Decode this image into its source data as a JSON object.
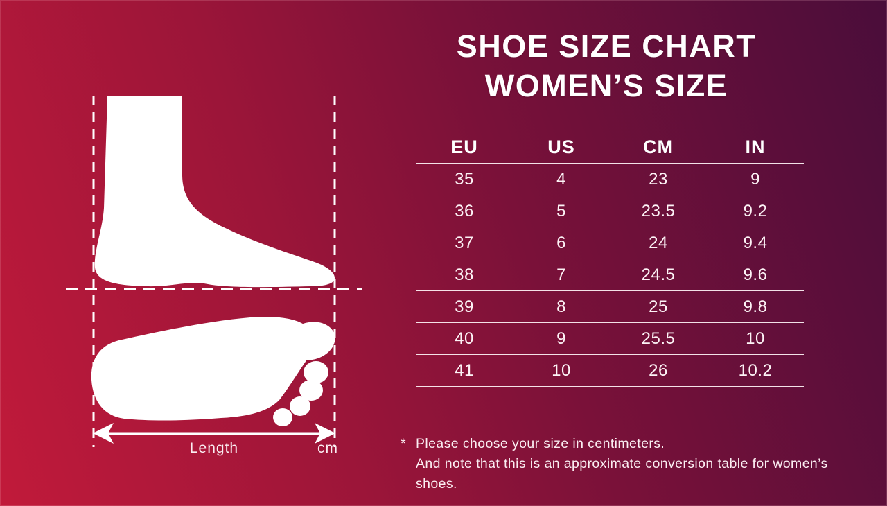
{
  "title": {
    "line1": "SHOE SIZE CHART",
    "line2": "WOMEN’S SIZE"
  },
  "table": {
    "headers": [
      "EU",
      "US",
      "CM",
      "IN"
    ],
    "rows": [
      [
        "35",
        "4",
        "23",
        "9"
      ],
      [
        "36",
        "5",
        "23.5",
        "9.2"
      ],
      [
        "37",
        "6",
        "24",
        "9.4"
      ],
      [
        "38",
        "7",
        "24.5",
        "9.6"
      ],
      [
        "39",
        "8",
        "25",
        "9.8"
      ],
      [
        "40",
        "9",
        "25.5",
        "10"
      ],
      [
        "41",
        "10",
        "26",
        "10.2"
      ]
    ]
  },
  "chart_data": {
    "type": "table",
    "title": "SHOE SIZE CHART WOMEN’S SIZE",
    "columns": [
      "EU",
      "US",
      "CM",
      "IN"
    ],
    "rows": [
      [
        35,
        4,
        23,
        9
      ],
      [
        36,
        5,
        23.5,
        9.2
      ],
      [
        37,
        6,
        24,
        9.4
      ],
      [
        38,
        7,
        24.5,
        9.6
      ],
      [
        39,
        8,
        25,
        9.8
      ],
      [
        40,
        9,
        25.5,
        10
      ],
      [
        41,
        10,
        26,
        10.2
      ]
    ],
    "notes": "Foot measurement diagram on the left shows length measured in cm"
  },
  "diagram": {
    "length_label": "Length",
    "unit_label": "cm"
  },
  "footnote": {
    "marker": "*",
    "line1": "Please choose your size in centimeters.",
    "line2": "And note that this is an approximate conversion table for women’s shoes."
  },
  "colors": {
    "bg_left": "#c11a3a",
    "bg_right": "#4a0d3a",
    "foreground": "#ffffff"
  }
}
